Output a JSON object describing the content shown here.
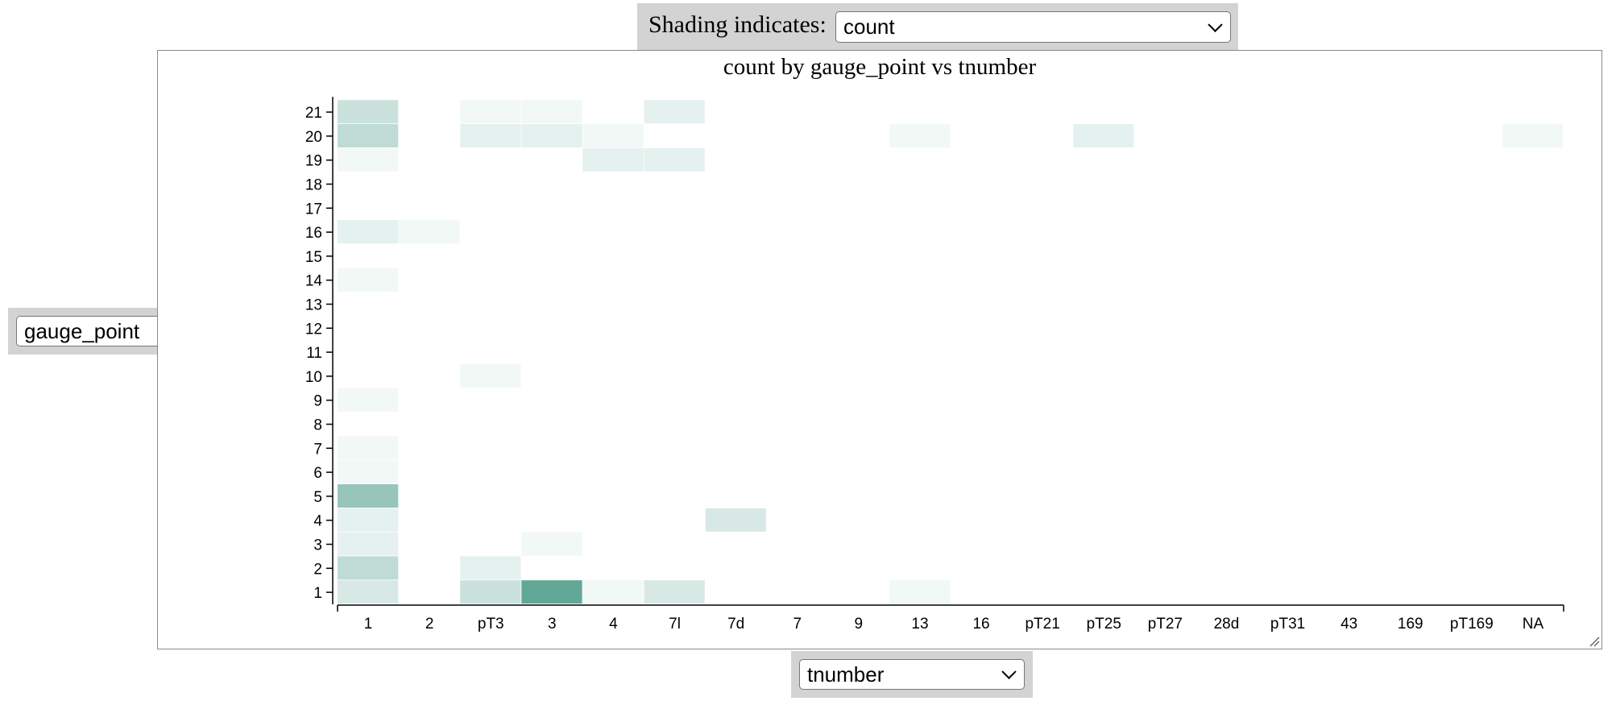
{
  "controls": {
    "shading_label": "Shading indicates:",
    "shading_value": "count",
    "y_axis_value": "gauge_point",
    "x_axis_value": "tnumber"
  },
  "chart_data": {
    "type": "heatmap",
    "title": "count by gauge_point vs tnumber",
    "xlabel": "",
    "ylabel": "",
    "x_categories": [
      "1",
      "2",
      "pT3",
      "3",
      "4",
      "7l",
      "7d",
      "7",
      "9",
      "13",
      "16",
      "pT21",
      "pT25",
      "pT27",
      "28d",
      "pT31",
      "43",
      "169",
      "pT169",
      "NA"
    ],
    "y_categories": [
      "1",
      "2",
      "3",
      "4",
      "5",
      "6",
      "7",
      "8",
      "9",
      "10",
      "11",
      "12",
      "13",
      "14",
      "15",
      "16",
      "17",
      "18",
      "19",
      "20",
      "21"
    ],
    "color_low": "#ffffff",
    "color_high": "#2e8b74",
    "max_count": 8,
    "cells": [
      {
        "x": "1",
        "y": "21",
        "count": 2
      },
      {
        "x": "pT3",
        "y": "21",
        "count": 0.5
      },
      {
        "x": "3",
        "y": "21",
        "count": 0.5
      },
      {
        "x": "7l",
        "y": "21",
        "count": 1
      },
      {
        "x": "1",
        "y": "20",
        "count": 2.5
      },
      {
        "x": "pT3",
        "y": "20",
        "count": 1
      },
      {
        "x": "3",
        "y": "20",
        "count": 1
      },
      {
        "x": "4",
        "y": "20",
        "count": 0.5
      },
      {
        "x": "13",
        "y": "20",
        "count": 0.5
      },
      {
        "x": "pT25",
        "y": "20",
        "count": 1
      },
      {
        "x": "NA",
        "y": "20",
        "count": 0.5
      },
      {
        "x": "1",
        "y": "19",
        "count": 0.5
      },
      {
        "x": "4",
        "y": "19",
        "count": 1
      },
      {
        "x": "7l",
        "y": "19",
        "count": 1
      },
      {
        "x": "1",
        "y": "16",
        "count": 1
      },
      {
        "x": "2",
        "y": "16",
        "count": 0.5
      },
      {
        "x": "1",
        "y": "14",
        "count": 0.5
      },
      {
        "x": "pT3",
        "y": "10",
        "count": 0.5
      },
      {
        "x": "1",
        "y": "9",
        "count": 0.5
      },
      {
        "x": "1",
        "y": "7",
        "count": 0.5
      },
      {
        "x": "1",
        "y": "6",
        "count": 0.5
      },
      {
        "x": "1",
        "y": "5",
        "count": 4
      },
      {
        "x": "1",
        "y": "4",
        "count": 1
      },
      {
        "x": "7d",
        "y": "4",
        "count": 1.5
      },
      {
        "x": "1",
        "y": "3",
        "count": 1
      },
      {
        "x": "3",
        "y": "3",
        "count": 0.5
      },
      {
        "x": "1",
        "y": "2",
        "count": 2.5
      },
      {
        "x": "pT3",
        "y": "2",
        "count": 1
      },
      {
        "x": "1",
        "y": "1",
        "count": 1.5
      },
      {
        "x": "pT3",
        "y": "1",
        "count": 2
      },
      {
        "x": "3",
        "y": "1",
        "count": 6
      },
      {
        "x": "4",
        "y": "1",
        "count": 0.5
      },
      {
        "x": "7l",
        "y": "1",
        "count": 1.5
      },
      {
        "x": "13",
        "y": "1",
        "count": 0.5
      }
    ]
  }
}
